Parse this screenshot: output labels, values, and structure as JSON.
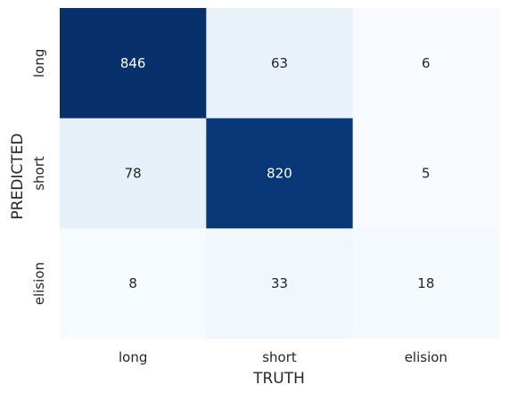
{
  "chart_data": {
    "type": "heatmap",
    "title": "",
    "xlabel": "TRUTH",
    "ylabel": "PREDICTED",
    "x_categories": [
      "long",
      "short",
      "elision"
    ],
    "y_categories": [
      "long",
      "short",
      "elision"
    ],
    "values": [
      [
        846,
        63,
        6
      ],
      [
        78,
        820,
        5
      ],
      [
        8,
        33,
        18
      ]
    ],
    "colormap": "Blues",
    "color_low": "#f7fbff",
    "color_high": "#08306b",
    "colorbar": false,
    "grid": false
  }
}
